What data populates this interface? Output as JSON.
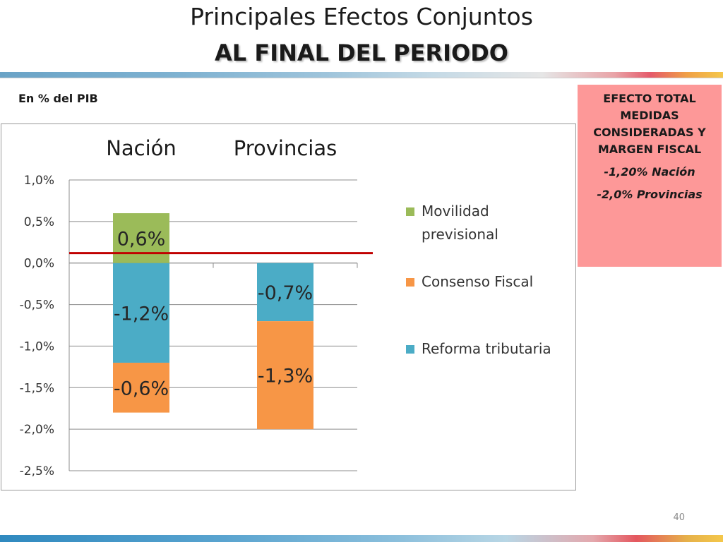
{
  "slide": {
    "title_line1": "Principales Efectos Conjuntos",
    "title_line2": "AL FINAL DEL PERIODO",
    "unit_label": "En % del PIB",
    "page_number": "40"
  },
  "summary_box": {
    "heading": "EFECTO TOTAL MEDIDAS CONSIDERADAS Y MARGEN FISCAL",
    "line_nacion": "-1,20% Nación",
    "line_provincias": "-2,0% Provincias",
    "color": "#fd9898"
  },
  "chart_data": {
    "type": "bar",
    "stacked": true,
    "categories": [
      "Nación",
      "Provincias"
    ],
    "series": [
      {
        "name": "Reforma tributaria",
        "color": "#4bacc6",
        "values": [
          -1.2,
          -0.7
        ],
        "labels": [
          "-1,2%",
          "-0,7%"
        ]
      },
      {
        "name": "Consenso Fiscal",
        "color": "#f79646",
        "values": [
          -0.6,
          -1.3
        ],
        "labels": [
          "-0,6%",
          "-1,3%"
        ]
      },
      {
        "name": "Movilidad previsional",
        "color": "#9bbb59",
        "values": [
          0.6,
          0
        ],
        "labels": [
          "0,6%",
          ""
        ]
      }
    ],
    "legend_order": [
      "Movilidad previsional",
      "Consenso Fiscal",
      "Reforma tributaria"
    ],
    "legend_position": "right",
    "ylim": [
      -2.5,
      1.0
    ],
    "yticks": [
      1.0,
      0.5,
      0.0,
      -0.5,
      -1.0,
      -1.5,
      -2.0,
      -2.5
    ],
    "ytick_labels": [
      "1,0%",
      "0,5%",
      "0,0%",
      "-0,5%",
      "-1,0%",
      "-1,5%",
      "-2,0%",
      "-2,5%"
    ],
    "grid": true,
    "reference_line": {
      "value": 0.12,
      "color": "#c00000"
    },
    "category_labels_position": "top"
  }
}
